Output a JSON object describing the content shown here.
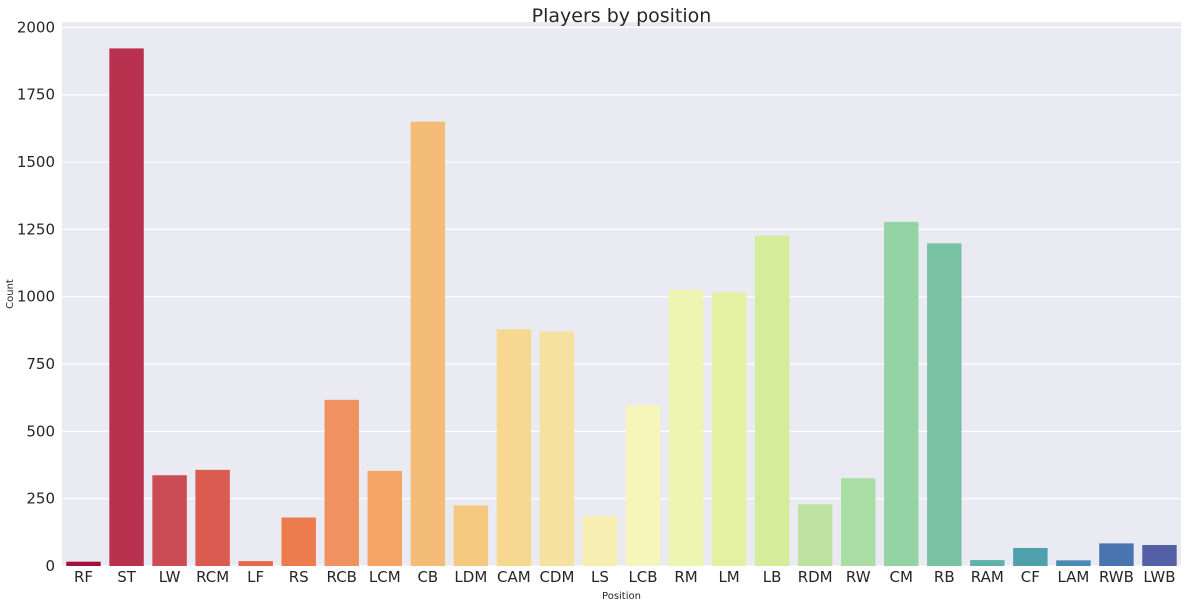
{
  "chart_data": {
    "type": "bar",
    "title": "Players by position",
    "xlabel": "Position",
    "ylabel": "Count",
    "categories": [
      "RF",
      "ST",
      "LW",
      "RCM",
      "LF",
      "RS",
      "RCB",
      "LCM",
      "CB",
      "LDM",
      "CAM",
      "CDM",
      "LS",
      "LCB",
      "RM",
      "LM",
      "LB",
      "RDM",
      "RW",
      "CM",
      "RB",
      "RAM",
      "CF",
      "LAM",
      "RWB",
      "LWB"
    ],
    "values": [
      16,
      1922,
      337,
      357,
      18,
      180,
      617,
      353,
      1650,
      225,
      879,
      871,
      185,
      598,
      1025,
      1016,
      1227,
      229,
      326,
      1278,
      1198,
      22,
      67,
      21,
      84,
      78
    ],
    "colors": [
      "#a50f3c",
      "#b8324f",
      "#cc4c55",
      "#da5b50",
      "#e4694b",
      "#ec7c4d",
      "#f09260",
      "#f4a566",
      "#f4bc76",
      "#f5c97f",
      "#f6d890",
      "#f5e2a1",
      "#f7eeb1",
      "#f6f5bc",
      "#eef5b0",
      "#e5f1a2",
      "#d5ec9b",
      "#bee3a1",
      "#aadda4",
      "#94d3a4",
      "#78c1a2",
      "#5fb3a6",
      "#4ea0ac",
      "#4b88b2",
      "#4a74b0",
      "#5561a6"
    ],
    "ylim": [
      0,
      2020
    ],
    "yticks": [
      0,
      250,
      500,
      750,
      1000,
      1250,
      1500,
      1750,
      2000
    ],
    "grid": true,
    "background": "#eaeaf2"
  }
}
